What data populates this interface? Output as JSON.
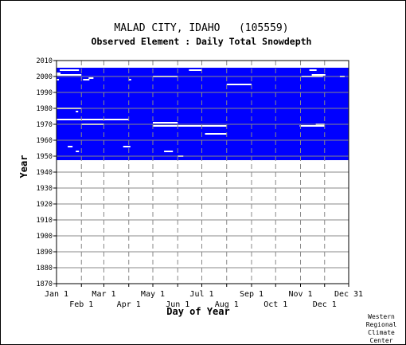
{
  "chart_data": {
    "type": "heatmap",
    "title": "MALAD CITY, IDAHO   (105559)",
    "subtitle": "Observed Element : Daily Total Snowdepth",
    "xlabel": "Day of Year",
    "ylabel": "Year",
    "ylim": [
      1870,
      2010
    ],
    "xlim": [
      "Jan 1",
      "Dec 31"
    ],
    "grid": true,
    "x_ticks_upper": [
      "Jan 1",
      "Mar 1",
      "May 1",
      "Jul 1",
      "Sep 1",
      "Nov 1",
      "Dec 31"
    ],
    "x_ticks_lower": [
      "Feb 1",
      "Apr 1",
      "Jun 1",
      "Aug 1",
      "Oct 1",
      "Dec 1"
    ],
    "y_ticks": [
      2010,
      2000,
      1990,
      1980,
      1970,
      1960,
      1950,
      1940,
      1930,
      1920,
      1910,
      1900,
      1890,
      1880,
      1870
    ],
    "record": {
      "first_year": 1948,
      "last_year": 2005,
      "color": "#0000ff"
    },
    "missing_segments": [
      {
        "year": 2004,
        "from": "Jan 5",
        "to": "Jan 28"
      },
      {
        "year": 2004,
        "from": "Jun 15",
        "to": "Jun 30"
      },
      {
        "year": 2004,
        "from": "Nov 12",
        "to": "Nov 20"
      },
      {
        "year": 2002,
        "from": "Jan 1",
        "to": "Jan 5"
      },
      {
        "year": 2001,
        "from": "Jan 1",
        "to": "Jan 31"
      },
      {
        "year": 2001,
        "from": "Nov 15",
        "to": "Dec 1"
      },
      {
        "year": 2000,
        "from": "May 1",
        "to": "May 31"
      },
      {
        "year": 2000,
        "from": "Nov 2",
        "to": "Nov 28"
      },
      {
        "year": 2000,
        "from": "Dec 20",
        "to": "Dec 25"
      },
      {
        "year": 1999,
        "from": "Feb 10",
        "to": "Feb 15"
      },
      {
        "year": 1998,
        "from": "Jan 1",
        "to": "Jan 3"
      },
      {
        "year": 1998,
        "from": "Feb 3",
        "to": "Feb 10"
      },
      {
        "year": 1998,
        "from": "Apr 1",
        "to": "Apr 3"
      },
      {
        "year": 1995,
        "from": "Aug 1",
        "to": "Aug 31"
      },
      {
        "year": 1980,
        "from": "Jan 1",
        "to": "Jan 31"
      },
      {
        "year": 1978,
        "from": "Jan 25",
        "to": "Jan 27"
      },
      {
        "year": 1973,
        "from": "Jan 1",
        "to": "Mar 31"
      },
      {
        "year": 1971,
        "from": "May 1",
        "to": "May 31"
      },
      {
        "year": 1970,
        "from": "Feb 1",
        "to": "Feb 28"
      },
      {
        "year": 1970,
        "from": "Nov 20",
        "to": "Nov 30"
      },
      {
        "year": 1969,
        "from": "May 1",
        "to": "Jul 31"
      },
      {
        "year": 1969,
        "from": "Oct 31",
        "to": "Nov 30"
      },
      {
        "year": 1964,
        "from": "Jul 5",
        "to": "Jul 31"
      },
      {
        "year": 1956,
        "from": "Jan 15",
        "to": "Jan 20"
      },
      {
        "year": 1956,
        "from": "Mar 25",
        "to": "Apr 2"
      },
      {
        "year": 1953,
        "from": "Jan 25",
        "to": "Jan 28"
      },
      {
        "year": 1953,
        "from": "May 15",
        "to": "May 25"
      },
      {
        "year": 1950,
        "from": "Jun 1",
        "to": "Jun 7"
      }
    ]
  },
  "credit": [
    "Western",
    "Regional",
    "Climate",
    "Center"
  ]
}
